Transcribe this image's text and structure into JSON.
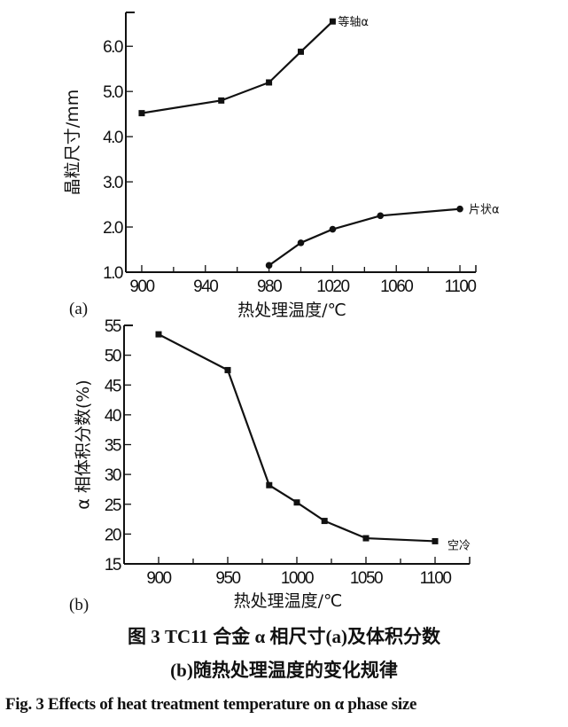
{
  "chart_data": [
    {
      "type": "line",
      "panel_label": "(a)",
      "xlabel": "热处理温度/℃",
      "ylabel": "晶粒尺寸/mm",
      "xlim": [
        890,
        1110
      ],
      "ylim": [
        1.0,
        6.75
      ],
      "xticks": [
        900,
        940,
        980,
        1020,
        1060,
        1100
      ],
      "xtick_labels": [
        "900",
        "940",
        "980",
        "1020",
        "1060",
        "1100"
      ],
      "yticks": [
        1.0,
        2.0,
        3.0,
        4.0,
        5.0,
        6.0
      ],
      "ytick_labels": [
        "1.0",
        "2.0",
        "3.0",
        "4.0",
        "5.0",
        "6.0"
      ],
      "grid": false,
      "series": [
        {
          "name": "等轴α",
          "marker": "square",
          "x": [
            900,
            950,
            980,
            1000,
            1020
          ],
          "y": [
            4.52,
            4.8,
            5.2,
            5.88,
            6.55
          ]
        },
        {
          "name": "片状α",
          "marker": "circle",
          "x": [
            980,
            1000,
            1020,
            1050,
            1100
          ],
          "y": [
            1.15,
            1.65,
            1.95,
            2.25,
            2.4
          ]
        }
      ]
    },
    {
      "type": "line",
      "panel_label": "(b)",
      "xlabel": "热处理温度/℃",
      "ylabel": "α 相体积分数(%)",
      "xlim": [
        875,
        1125
      ],
      "ylim": [
        15,
        55
      ],
      "xticks": [
        900,
        950,
        1000,
        1050,
        1100
      ],
      "xtick_labels": [
        "900",
        "950",
        "1000",
        "1050",
        "1100"
      ],
      "yticks": [
        15,
        20,
        25,
        30,
        35,
        40,
        45,
        50,
        55
      ],
      "ytick_labels": [
        "15",
        "20",
        "25",
        "30",
        "35",
        "40",
        "45",
        "50",
        "55"
      ],
      "grid": false,
      "series": [
        {
          "name": "空冷",
          "marker": "square",
          "x": [
            900,
            950,
            980,
            1000,
            1020,
            1050,
            1100
          ],
          "y": [
            53.5,
            47.5,
            28.2,
            25.3,
            22.2,
            19.3,
            18.8
          ]
        }
      ]
    }
  ],
  "caption": {
    "line1": "图 3   TC11 合金 α 相尺寸(a)及体积分数",
    "line2": "(b)随热处理温度的变化规律",
    "line3": "Fig. 3   Effects of heat treatment temperature on α phase size"
  },
  "colors": {
    "ink": "#111111",
    "background": "#ffffff"
  }
}
